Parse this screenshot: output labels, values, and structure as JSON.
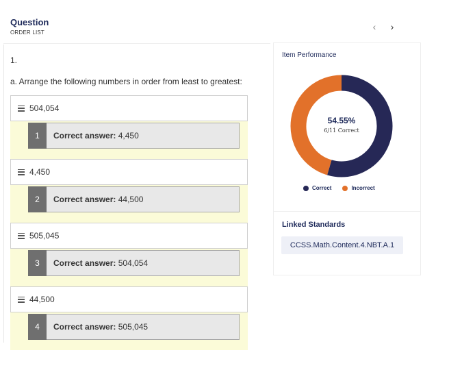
{
  "header": {
    "title": "Question",
    "subtitle": "ORDER LIST",
    "prev_icon": "chevron-left-icon",
    "next_icon": "chevron-right-icon",
    "prev_glyph": "‹",
    "next_glyph": "›"
  },
  "question": {
    "number": "1.",
    "prompt": "a. Arrange the following numbers in order from least to greatest:",
    "items": [
      {
        "value": "504,054",
        "position": "1",
        "correct_label": "Correct answer:",
        "correct_value": "4,450"
      },
      {
        "value": "4,450",
        "position": "2",
        "correct_label": "Correct answer:",
        "correct_value": "44,500"
      },
      {
        "value": "505,045",
        "position": "3",
        "correct_label": "Correct answer:",
        "correct_value": "504,054"
      },
      {
        "value": "44,500",
        "position": "4",
        "correct_label": "Correct answer:",
        "correct_value": "505,045"
      }
    ]
  },
  "performance": {
    "title": "Item Performance",
    "percent_label": "54.55%",
    "detail": "6/11 Correct",
    "legend_correct": "Correct",
    "legend_incorrect": "Incorrect"
  },
  "chart_data": {
    "type": "pie",
    "donut": true,
    "categories": [
      "Correct",
      "Incorrect"
    ],
    "values": [
      6,
      5
    ],
    "colors": [
      "#262856",
      "#e2712a"
    ],
    "title": "",
    "legend": "bottom"
  },
  "standards": {
    "title": "Linked Standards",
    "items": [
      "CCSS.Math.Content.4.NBT.A.1"
    ]
  },
  "colors": {
    "navy": "#1e2a5a",
    "correct": "#262856",
    "incorrect": "#e2712a",
    "feedback_bg": "#fbfbd8",
    "feedback_num_bg": "#6f6f6f",
    "chip_bg": "#eef0f7"
  }
}
